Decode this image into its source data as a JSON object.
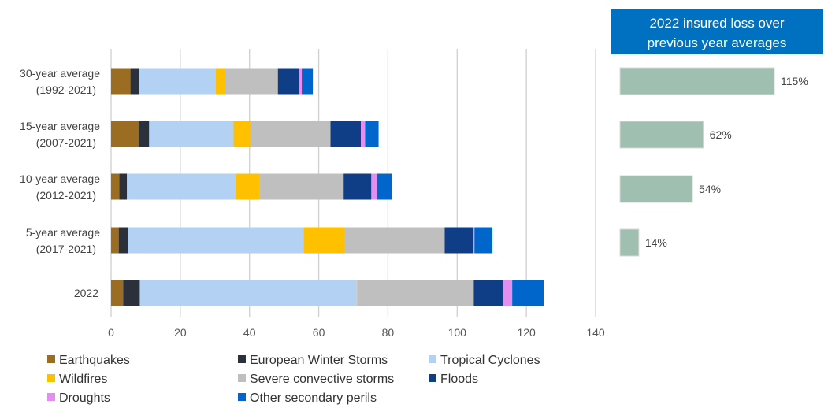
{
  "chart_data": [
    {
      "type": "bar",
      "orientation": "horizontal",
      "stacked": true,
      "categories": [
        [
          "30-year average",
          "(1992-2021)"
        ],
        [
          "15-year average",
          "(2007-2021)"
        ],
        [
          "10-year average",
          "(2012-2021)"
        ],
        [
          "5-year average",
          "(2017-2021)"
        ],
        [
          "2022"
        ]
      ],
      "series": [
        {
          "name": "Earthquakes",
          "color": "#9a6d23",
          "values": [
            5.6,
            8.0,
            2.4,
            2.2,
            3.5
          ]
        },
        {
          "name": "European Winter Storms",
          "color": "#2b303b",
          "values": [
            2.4,
            3.0,
            2.2,
            2.6,
            4.8
          ]
        },
        {
          "name": "Tropical Cyclones",
          "color": "#b3d1f2",
          "values": [
            22.2,
            24.4,
            31.4,
            50.8,
            62.7
          ]
        },
        {
          "name": "Wildfires",
          "color": "#ffc000",
          "values": [
            2.8,
            4.9,
            6.9,
            12.0,
            0.2
          ]
        },
        {
          "name": "Severe convective storms",
          "color": "#bfbfbf",
          "values": [
            15.2,
            23.1,
            24.3,
            28.8,
            33.6
          ]
        },
        {
          "name": "Floods",
          "color": "#0f3e86",
          "values": [
            6.2,
            8.8,
            8.0,
            8.3,
            8.5
          ]
        },
        {
          "name": "Droughts",
          "color": "#e58ef0",
          "values": [
            0.7,
            1.2,
            1.7,
            0.3,
            2.6
          ]
        },
        {
          "name": "Other secondary perils",
          "color": "#0066cc",
          "values": [
            3.2,
            3.9,
            4.3,
            5.2,
            9.1
          ]
        }
      ],
      "xlim": [
        0,
        140
      ],
      "xticks": [
        "0",
        "20",
        "40",
        "60",
        "80",
        "100",
        "120",
        "140"
      ],
      "grid": true,
      "legend": "bottom"
    },
    {
      "type": "bar",
      "orientation": "horizontal",
      "title": "2022 insured loss over previous year averages",
      "title_lines": [
        "2022 insured loss over",
        "previous year averages"
      ],
      "title_bg": "#0070c0",
      "bar_color": "#9fbfb1",
      "values": [
        115,
        62,
        54,
        14
      ],
      "labels": [
        "115%",
        "62%",
        "54%",
        "14%"
      ]
    }
  ]
}
